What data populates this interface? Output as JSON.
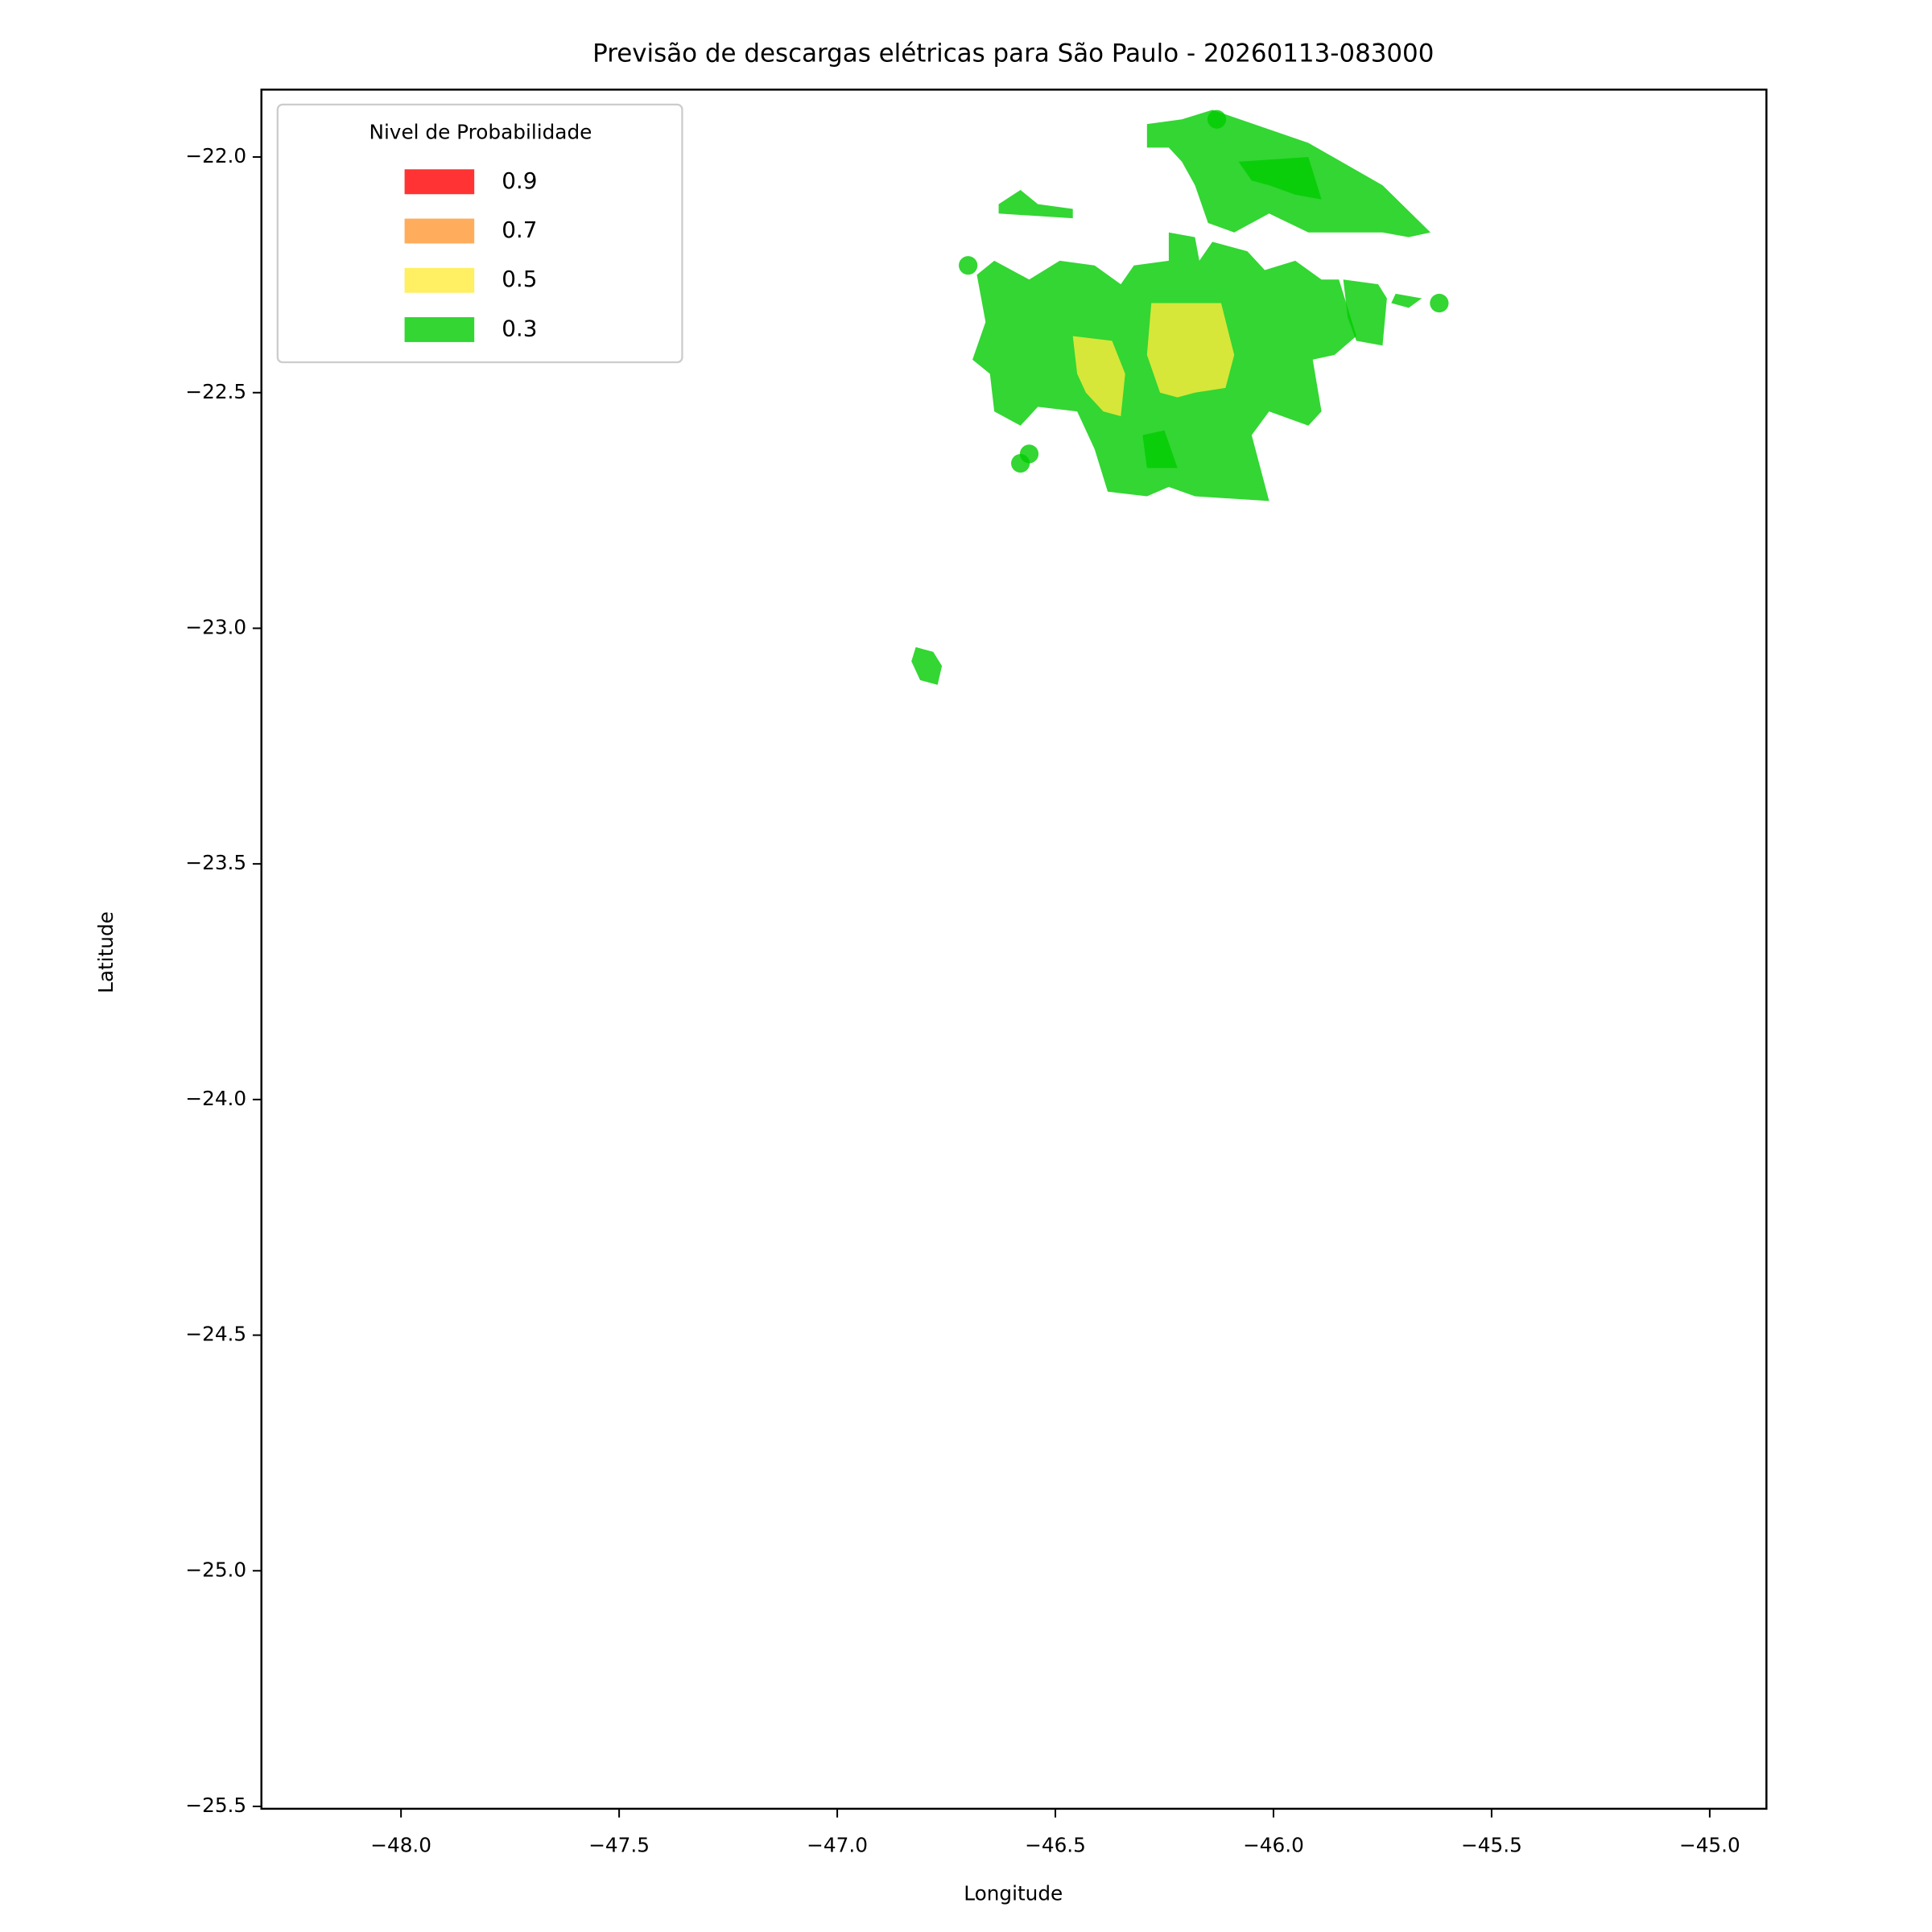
{
  "chart_data": {
    "type": "map",
    "title": "Previsão de descargas elétricas para São Paulo - 20260113-083000",
    "x_label": "Longitude",
    "y_label": "Latitude",
    "legend_title": "Nivel de Probabilidade",
    "legend": "upper left",
    "fill_opacity": 0.8,
    "xlim": [
      -48.32,
      -44.87
    ],
    "ylim": [
      -25.505,
      -21.857
    ],
    "xticks": [
      {
        "value": -48.0,
        "label": "−48.0"
      },
      {
        "value": -47.5,
        "label": "−47.5"
      },
      {
        "value": -47.0,
        "label": "−47.0"
      },
      {
        "value": -46.5,
        "label": "−46.5"
      },
      {
        "value": -46.0,
        "label": "−46.0"
      },
      {
        "value": -45.5,
        "label": "−45.5"
      },
      {
        "value": -45.0,
        "label": "−45.0"
      }
    ],
    "yticks": [
      {
        "value": -22.0,
        "label": "−22.0"
      },
      {
        "value": -22.5,
        "label": "−22.5"
      },
      {
        "value": -23.0,
        "label": "−23.0"
      },
      {
        "value": -23.5,
        "label": "−23.5"
      },
      {
        "value": -24.0,
        "label": "−24.0"
      },
      {
        "value": -24.5,
        "label": "−24.5"
      },
      {
        "value": -25.0,
        "label": "−25.0"
      },
      {
        "value": -25.5,
        "label": "−25.5"
      }
    ],
    "series": [
      {
        "name": "0.9",
        "color": "#ff0000"
      },
      {
        "name": "0.7",
        "color": "#ff9933"
      },
      {
        "name": "0.5",
        "color": "#ffeb3b",
        "polygons": [
          [
            [
              -46.28,
              -22.31
            ],
            [
              -46.19,
              -22.31
            ],
            [
              -46.12,
              -22.31
            ],
            [
              -46.09,
              -22.42
            ],
            [
              -46.11,
              -22.49
            ],
            [
              -46.18,
              -22.5
            ],
            [
              -46.22,
              -22.51
            ],
            [
              -46.26,
              -22.5
            ],
            [
              -46.29,
              -22.42
            ]
          ],
          [
            [
              -46.46,
              -22.38
            ],
            [
              -46.37,
              -22.39
            ],
            [
              -46.34,
              -22.46
            ],
            [
              -46.35,
              -22.55
            ],
            [
              -46.39,
              -22.54
            ],
            [
              -46.43,
              -22.5
            ],
            [
              -46.45,
              -22.46
            ]
          ]
        ]
      },
      {
        "name": "0.3",
        "color": "#00cc00",
        "polygons": [
          [
            [
              -46.68,
              -22.25
            ],
            [
              -46.64,
              -22.22
            ],
            [
              -46.56,
              -22.26
            ],
            [
              -46.49,
              -22.22
            ],
            [
              -46.41,
              -22.23
            ],
            [
              -46.35,
              -22.27
            ],
            [
              -46.32,
              -22.23
            ],
            [
              -46.24,
              -22.22
            ],
            [
              -46.24,
              -22.16
            ],
            [
              -46.18,
              -22.17
            ],
            [
              -46.17,
              -22.22
            ],
            [
              -46.14,
              -22.18
            ],
            [
              -46.06,
              -22.2
            ],
            [
              -46.02,
              -22.24
            ],
            [
              -45.95,
              -22.22
            ],
            [
              -45.89,
              -22.26
            ],
            [
              -45.85,
              -22.26
            ],
            [
              -45.81,
              -22.38
            ],
            [
              -45.86,
              -22.42
            ],
            [
              -45.91,
              -22.43
            ],
            [
              -45.89,
              -22.54
            ],
            [
              -45.92,
              -22.57
            ],
            [
              -46.01,
              -22.54
            ],
            [
              -46.05,
              -22.59
            ],
            [
              -46.01,
              -22.73
            ],
            [
              -46.18,
              -22.72
            ],
            [
              -46.24,
              -22.7
            ],
            [
              -46.29,
              -22.72
            ],
            [
              -46.38,
              -22.71
            ],
            [
              -46.41,
              -22.62
            ],
            [
              -46.45,
              -22.54
            ],
            [
              -46.54,
              -22.53
            ],
            [
              -46.58,
              -22.57
            ],
            [
              -46.64,
              -22.54
            ],
            [
              -46.65,
              -22.46
            ],
            [
              -46.69,
              -22.43
            ],
            [
              -46.66,
              -22.35
            ]
          ],
          [
            [
              -46.29,
              -21.93
            ],
            [
              -46.21,
              -21.92
            ],
            [
              -46.14,
              -21.9
            ],
            [
              -45.92,
              -21.97
            ],
            [
              -45.75,
              -22.06
            ],
            [
              -45.64,
              -22.16
            ],
            [
              -45.69,
              -22.17
            ],
            [
              -45.75,
              -22.16
            ],
            [
              -45.84,
              -22.16
            ],
            [
              -45.92,
              -22.16
            ],
            [
              -46.01,
              -22.12
            ],
            [
              -46.09,
              -22.16
            ],
            [
              -46.15,
              -22.14
            ],
            [
              -46.18,
              -22.06
            ],
            [
              -46.21,
              -22.01
            ],
            [
              -46.24,
              -21.98
            ],
            [
              -46.29,
              -21.98
            ]
          ],
          [
            [
              -46.63,
              -22.1
            ],
            [
              -46.58,
              -22.07
            ],
            [
              -46.54,
              -22.1
            ],
            [
              -46.46,
              -22.11
            ],
            [
              -46.46,
              -22.13
            ],
            [
              -46.63,
              -22.12
            ]
          ],
          [
            [
              -45.84,
              -22.26
            ],
            [
              -45.76,
              -22.27
            ],
            [
              -45.74,
              -22.3
            ],
            [
              -45.75,
              -22.4
            ],
            [
              -45.81,
              -22.39
            ],
            [
              -45.83,
              -22.34
            ]
          ],
          [
            [
              -45.72,
              -22.29
            ],
            [
              -45.66,
              -22.3
            ],
            [
              -45.69,
              -22.32
            ],
            [
              -45.73,
              -22.31
            ]
          ],
          [
            [
              -46.82,
              -23.04
            ],
            [
              -46.78,
              -23.05
            ],
            [
              -46.76,
              -23.08
            ],
            [
              -46.77,
              -23.12
            ],
            [
              -46.81,
              -23.11
            ],
            [
              -46.83,
              -23.07
            ]
          ],
          [
            [
              -46.08,
              -22.01
            ],
            [
              -45.92,
              -22.0
            ],
            [
              -45.89,
              -22.09
            ],
            [
              -45.95,
              -22.08
            ],
            [
              -46.01,
              -22.06
            ],
            [
              -46.05,
              -22.05
            ]
          ],
          [
            [
              -46.3,
              -22.59
            ],
            [
              -46.25,
              -22.58
            ],
            [
              -46.22,
              -22.66
            ],
            [
              -46.29,
              -22.66
            ]
          ]
        ],
        "points": [
          [
            -46.7,
            -22.23
          ],
          [
            -46.13,
            -21.92
          ],
          [
            -45.62,
            -22.31
          ],
          [
            -46.56,
            -22.63
          ],
          [
            -46.58,
            -22.65
          ]
        ]
      }
    ]
  }
}
